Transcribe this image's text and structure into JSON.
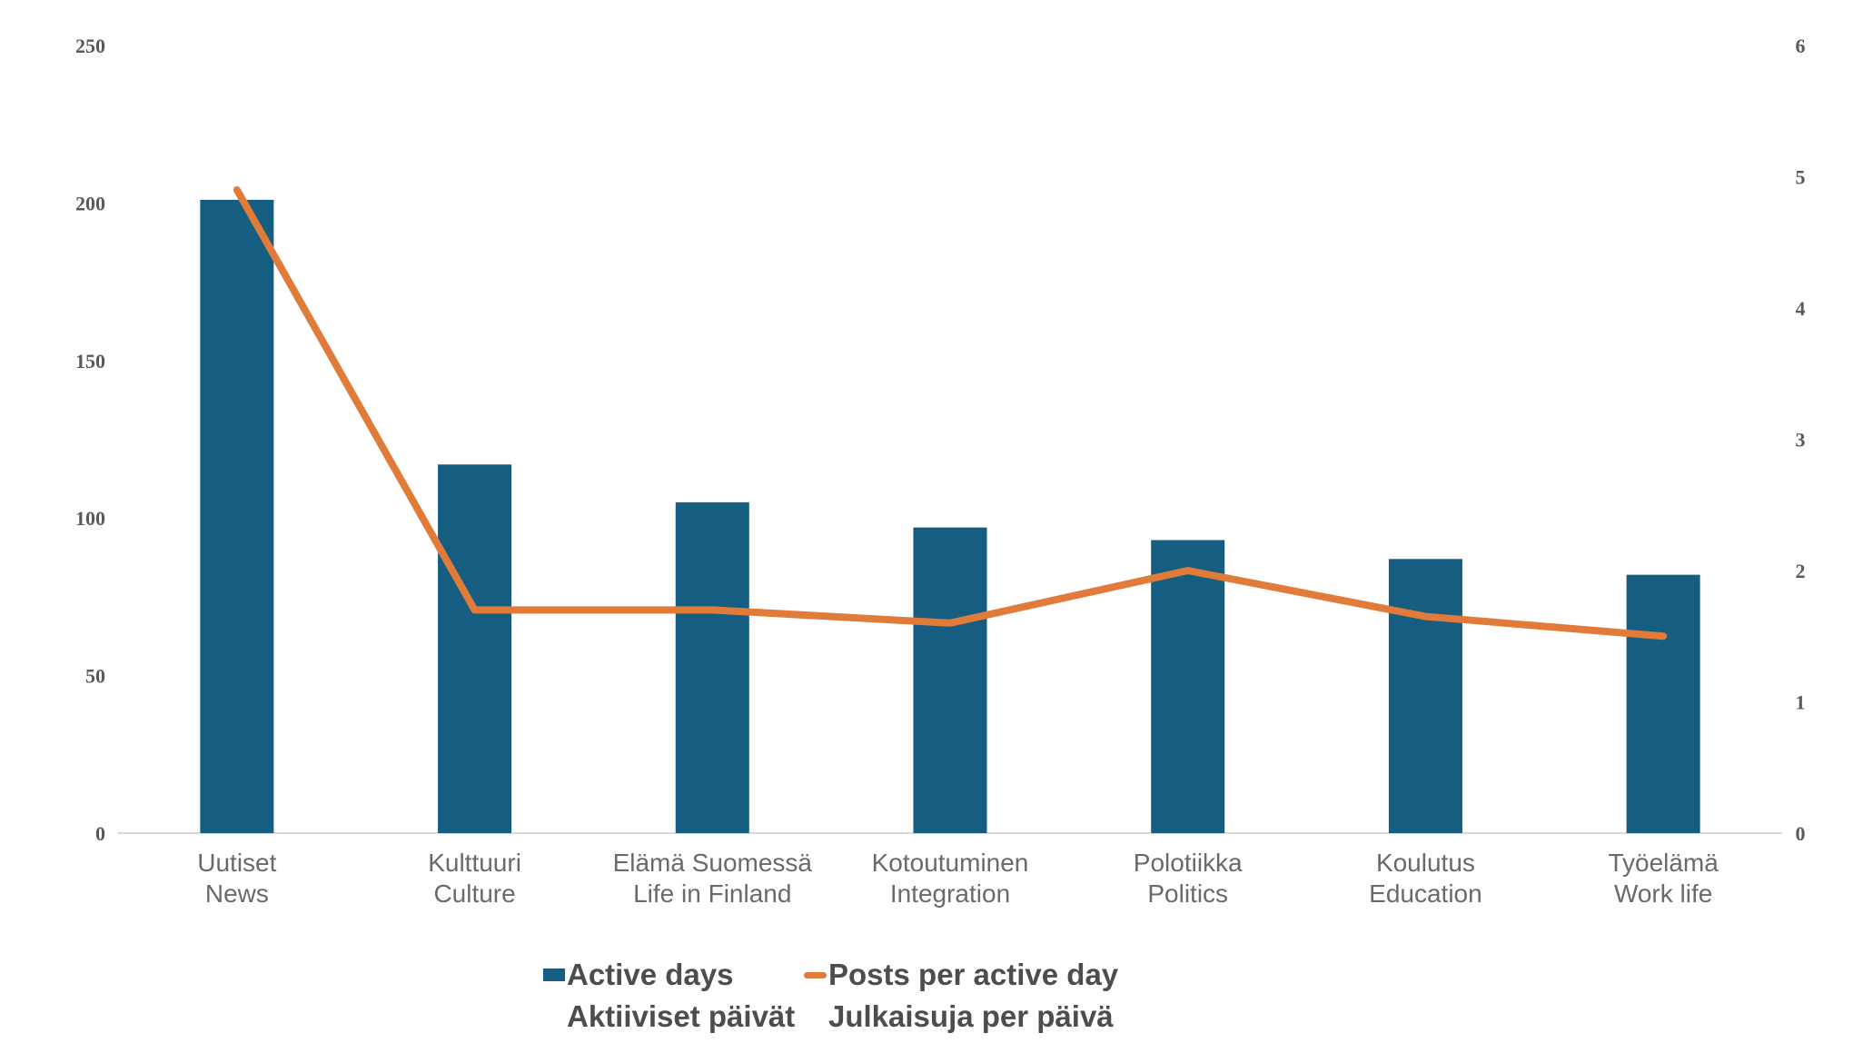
{
  "page": {
    "background": "#ffffff"
  },
  "chart_data": {
    "type": "combo-bar-line",
    "title": "",
    "categories": [
      {
        "fi": "Uutiset",
        "en": "News"
      },
      {
        "fi": "Kulttuuri",
        "en": "Culture"
      },
      {
        "fi": "Elämä Suomessä",
        "en": "Life in Finland"
      },
      {
        "fi": "Kotoutuminen",
        "en": "Integration"
      },
      {
        "fi": "Polotiikka",
        "en": "Politics"
      },
      {
        "fi": "Koulutus",
        "en": "Education"
      },
      {
        "fi": "Työelämä",
        "en": "Work life"
      }
    ],
    "series": [
      {
        "name": "Active days / Aktiiviset päivät",
        "type": "bar",
        "axis": "left",
        "color": "#155e82",
        "values": [
          201,
          117,
          105,
          97,
          93,
          87,
          82
        ]
      },
      {
        "name": "Posts per active day / Julkaisuja per päivä",
        "type": "line",
        "axis": "right",
        "color": "#e07b3a",
        "values": [
          4.9,
          1.7,
          1.7,
          1.6,
          2.0,
          1.65,
          1.5
        ]
      }
    ],
    "left_axis": {
      "min": 0,
      "max": 250,
      "step": 50,
      "ticks": [
        0,
        50,
        100,
        150,
        200,
        250
      ]
    },
    "right_axis": {
      "min": 0,
      "max": 6,
      "step": 1,
      "ticks": [
        0,
        1,
        2,
        3,
        4,
        5,
        6
      ]
    },
    "grid": false,
    "legend_position": "bottom"
  },
  "legend": {
    "items": [
      {
        "swatch": "bar",
        "color": "#155e82",
        "line1": "Active days",
        "line2": "Aktiiviset päivät"
      },
      {
        "swatch": "line",
        "color": "#e07b3a",
        "line1": "Posts per active day",
        "line2": "Julkaisuja per päivä"
      }
    ]
  },
  "colors": {
    "bar": "#155e82",
    "line": "#e07b3a",
    "baseline": "#d9d9d9",
    "tick_text": "#595959",
    "category_text": "#6a6a6a",
    "legend_text": "#4d4d4d",
    "background": "#ffffff"
  }
}
